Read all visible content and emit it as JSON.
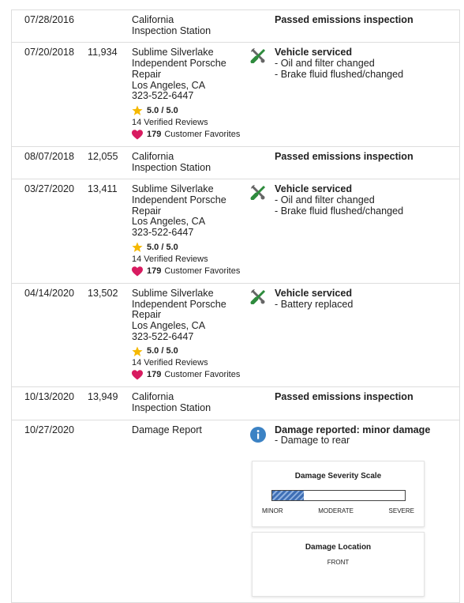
{
  "rows": [
    {
      "date": "07/28/2016",
      "source": [
        "California",
        "Inspection Station"
      ],
      "detail_title": "Passed emissions inspection",
      "detail_items": []
    },
    {
      "date": "07/20/2018",
      "mileage": "11,934",
      "source": [
        "Sublime Silverlake",
        "Independent Porsche",
        "Repair",
        "Los Angeles, CA",
        "323-522-6447"
      ],
      "rating": {
        "score": "5.0 / 5.0",
        "reviews": "14 Verified Reviews",
        "favorites": "179",
        "favorites_label": "Customer Favorites"
      },
      "detail_title": "Vehicle serviced",
      "detail_items": [
        "- Oil and filter changed",
        "- Brake fluid flushed/changed"
      ]
    },
    {
      "date": "08/07/2018",
      "mileage": "12,055",
      "source": [
        "California",
        "Inspection Station"
      ],
      "detail_title": "Passed emissions inspection",
      "detail_items": []
    },
    {
      "date": "03/27/2020",
      "mileage": "13,411",
      "source": [
        "Sublime Silverlake",
        "Independent Porsche",
        "Repair",
        "Los Angeles, CA",
        "323-522-6447"
      ],
      "rating": {
        "score": "5.0 / 5.0",
        "reviews": "14 Verified Reviews",
        "favorites": "179",
        "favorites_label": "Customer Favorites"
      },
      "detail_title": "Vehicle serviced",
      "detail_items": [
        "- Oil and filter changed",
        "- Brake fluid flushed/changed"
      ]
    },
    {
      "date": "04/14/2020",
      "mileage": "13,502",
      "source": [
        "Sublime Silverlake",
        "Independent Porsche",
        "Repair",
        "Los Angeles, CA",
        "323-522-6447"
      ],
      "rating": {
        "score": "5.0 / 5.0",
        "reviews": "14 Verified Reviews",
        "favorites": "179",
        "favorites_label": "Customer Favorites"
      },
      "detail_title": "Vehicle serviced",
      "detail_items": [
        "- Battery replaced"
      ]
    },
    {
      "date": "10/13/2020",
      "mileage": "13,949",
      "source": [
        "California",
        "Inspection Station"
      ],
      "detail_title": "Passed emissions inspection",
      "detail_items": []
    },
    {
      "date": "10/27/2020",
      "source": [
        "Damage Report"
      ],
      "detail_title": "Damage reported: minor damage",
      "detail_items": [
        "- Damage to rear"
      ],
      "damage": {
        "scale_title": "Damage Severity Scale",
        "scale_labels": [
          "MINOR",
          "MODERATE",
          "SEVERE"
        ],
        "location_title": "Damage Location",
        "location": "FRONT"
      }
    }
  ]
}
